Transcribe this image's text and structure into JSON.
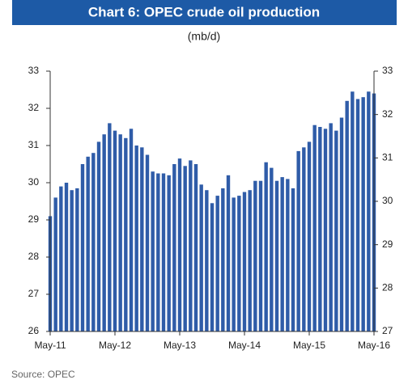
{
  "chart_data": {
    "type": "bar",
    "title": "Chart 6: OPEC crude oil production",
    "subtitle": "(mb/d)",
    "source": "Source: OPEC",
    "categories": [
      "May-11",
      null,
      null,
      null,
      null,
      null,
      null,
      null,
      null,
      null,
      null,
      null,
      "May-12",
      null,
      null,
      null,
      null,
      null,
      null,
      null,
      null,
      null,
      null,
      null,
      "May-13",
      null,
      null,
      null,
      null,
      null,
      null,
      null,
      null,
      null,
      null,
      null,
      "May-14",
      null,
      null,
      null,
      null,
      null,
      null,
      null,
      null,
      null,
      null,
      null,
      "May-15",
      null,
      null,
      null,
      null,
      null,
      null,
      null,
      null,
      null,
      null,
      null,
      "May-16"
    ],
    "values": [
      29.1,
      29.6,
      29.9,
      30.0,
      29.8,
      29.85,
      30.5,
      30.7,
      30.8,
      31.1,
      31.3,
      31.6,
      31.4,
      31.3,
      31.2,
      31.45,
      31.0,
      30.95,
      30.75,
      30.3,
      30.25,
      30.25,
      30.2,
      30.5,
      30.65,
      30.45,
      30.6,
      30.5,
      29.95,
      29.8,
      29.45,
      29.65,
      29.85,
      30.2,
      29.6,
      29.65,
      29.75,
      29.8,
      30.05,
      30.05,
      30.55,
      30.4,
      30.05,
      30.15,
      30.1,
      29.85,
      30.85,
      30.95,
      31.1,
      31.55,
      31.5,
      31.45,
      31.6,
      31.4,
      31.75,
      32.2,
      32.45,
      32.25,
      32.3,
      32.45,
      32.4
    ],
    "color": "#2f5ca8",
    "ylim": [
      26,
      33
    ],
    "yticks": [
      26,
      27,
      28,
      29,
      30,
      31,
      32,
      33
    ],
    "y2lim": [
      27,
      33
    ],
    "y2ticks": [
      27,
      28,
      29,
      30,
      31,
      32,
      33
    ],
    "grid": false
  }
}
